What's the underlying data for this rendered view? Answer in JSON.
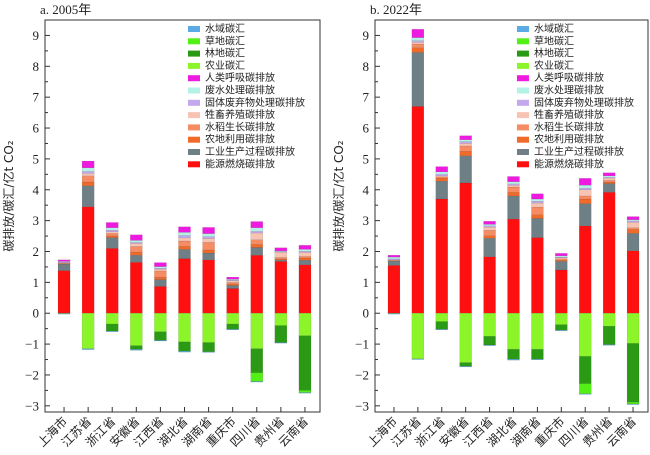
{
  "chart_data": [
    {
      "type": "bar",
      "stacked": true,
      "title": "a. 2005年",
      "xlabel": "",
      "ylabel": "碳排放/碳汇/亿t CO₂",
      "ylim": [
        -3.2,
        9.5
      ],
      "yticks": [
        -3,
        -2,
        -1,
        0,
        1,
        2,
        3,
        4,
        5,
        6,
        7,
        8,
        9
      ],
      "legend_position": "top-right",
      "categories": [
        "上海市",
        "江苏省",
        "浙江省",
        "安徽省",
        "江西省",
        "湖北省",
        "湖南省",
        "重庆市",
        "四川省",
        "贵州省",
        "云南省"
      ],
      "series": [
        {
          "name": "能源燃烧碳排放",
          "color": "#ff1010",
          "values": [
            1.38,
            3.45,
            2.1,
            1.65,
            0.87,
            1.77,
            1.73,
            0.8,
            1.88,
            1.68,
            1.57
          ]
        },
        {
          "name": "工业生产过程碳排放",
          "color": "#6e7f86",
          "values": [
            0.22,
            0.68,
            0.35,
            0.23,
            0.22,
            0.3,
            0.22,
            0.1,
            0.25,
            0.05,
            0.15
          ]
        },
        {
          "name": "农地利用碳排放",
          "color": "#f06a2a",
          "values": [
            0.01,
            0.12,
            0.06,
            0.1,
            0.08,
            0.1,
            0.1,
            0.05,
            0.1,
            0.03,
            0.07
          ]
        },
        {
          "name": "水稻生长碳排放",
          "color": "#f58c64",
          "values": [
            0.01,
            0.2,
            0.08,
            0.18,
            0.2,
            0.17,
            0.25,
            0.05,
            0.15,
            0.05,
            0.05
          ]
        },
        {
          "name": "牲畜养殖碳排放",
          "color": "#f7c4b4",
          "values": [
            0.02,
            0.08,
            0.05,
            0.1,
            0.06,
            0.1,
            0.12,
            0.05,
            0.22,
            0.17,
            0.13
          ]
        },
        {
          "name": "固体废弃物处理碳排放",
          "color": "#c4a8ee",
          "values": [
            0.02,
            0.06,
            0.05,
            0.03,
            0.03,
            0.08,
            0.06,
            0.02,
            0.05,
            0.02,
            0.04
          ]
        },
        {
          "name": "废水处理碳排放",
          "color": "#b4f2e6",
          "values": [
            0.02,
            0.12,
            0.08,
            0.07,
            0.05,
            0.1,
            0.1,
            0.03,
            0.12,
            0.02,
            0.06
          ]
        },
        {
          "name": "人类呼吸碳排放",
          "color": "#ee1ae0",
          "values": [
            0.05,
            0.22,
            0.17,
            0.18,
            0.13,
            0.18,
            0.2,
            0.07,
            0.2,
            0.1,
            0.13
          ]
        },
        {
          "name": "农业碳汇",
          "color": "#8cf52a",
          "values": [
            -0.01,
            -1.15,
            -0.35,
            -1.05,
            -0.6,
            -0.93,
            -0.95,
            -0.35,
            -1.15,
            -0.4,
            -0.73
          ]
        },
        {
          "name": "林地碳汇",
          "color": "#2a9a14",
          "values": [
            0,
            0,
            -0.23,
            -0.12,
            -0.28,
            -0.3,
            -0.3,
            -0.17,
            -0.78,
            -0.55,
            -1.77
          ]
        },
        {
          "name": "草地碳汇",
          "color": "#52f014",
          "values": [
            0,
            0,
            0,
            0,
            0,
            0,
            0,
            0,
            -0.28,
            0,
            -0.07
          ]
        },
        {
          "name": "水域碳汇",
          "color": "#5aaae6",
          "values": [
            -0.01,
            -0.03,
            -0.01,
            -0.03,
            -0.01,
            -0.03,
            -0.01,
            -0.01,
            -0.01,
            -0.01,
            -0.02
          ]
        }
      ]
    },
    {
      "type": "bar",
      "stacked": true,
      "title": "b. 2022年",
      "xlabel": "",
      "ylabel": "碳排放/碳汇/亿t CO₂",
      "ylim": [
        -3.2,
        9.5
      ],
      "yticks": [
        -3,
        -2,
        -1,
        0,
        1,
        2,
        3,
        4,
        5,
        6,
        7,
        8,
        9
      ],
      "legend_position": "top-right",
      "categories": [
        "上海市",
        "江苏省",
        "浙江省",
        "安徽省",
        "江西省",
        "湖北省",
        "湖南省",
        "重庆市",
        "四川省",
        "贵州省",
        "云南省"
      ],
      "series": [
        {
          "name": "能源燃烧碳排放",
          "color": "#ff1010",
          "values": [
            1.55,
            6.7,
            3.7,
            4.22,
            1.83,
            3.05,
            2.45,
            1.4,
            2.83,
            3.92,
            2.02
          ]
        },
        {
          "name": "工业生产过程碳排放",
          "color": "#6e7f86",
          "values": [
            0.15,
            1.75,
            0.58,
            0.88,
            0.6,
            0.75,
            0.62,
            0.28,
            0.72,
            0.28,
            0.57
          ]
        },
        {
          "name": "农地利用碳排放",
          "color": "#f06a2a",
          "values": [
            0.01,
            0.15,
            0.1,
            0.15,
            0.08,
            0.12,
            0.12,
            0.04,
            0.15,
            0.05,
            0.13
          ]
        },
        {
          "name": "水稻生长碳排放",
          "color": "#f58c64",
          "values": [
            0.01,
            0.12,
            0.04,
            0.17,
            0.18,
            0.17,
            0.25,
            0.04,
            0.1,
            0.05,
            0.05
          ]
        },
        {
          "name": "牲畜养殖碳排放",
          "color": "#f7c4b4",
          "values": [
            0.01,
            0.06,
            0.03,
            0.08,
            0.1,
            0.06,
            0.13,
            0.04,
            0.2,
            0.08,
            0.18
          ]
        },
        {
          "name": "固体废弃物处理碳排放",
          "color": "#c4a8ee",
          "values": [
            0.03,
            0.05,
            0.05,
            0.06,
            0.04,
            0.04,
            0.06,
            0.02,
            0.05,
            0.02,
            0.04
          ]
        },
        {
          "name": "废水处理碳排放",
          "color": "#b4f2e6",
          "values": [
            0.06,
            0.1,
            0.08,
            0.06,
            0.05,
            0.07,
            0.07,
            0.04,
            0.1,
            0.05,
            0.04
          ]
        },
        {
          "name": "人类呼吸碳排放",
          "color": "#ee1ae0",
          "values": [
            0.06,
            0.27,
            0.17,
            0.13,
            0.1,
            0.17,
            0.17,
            0.08,
            0.22,
            0.1,
            0.1
          ]
        },
        {
          "name": "农业碳汇",
          "color": "#8cf52a",
          "values": [
            -0.01,
            -1.48,
            -0.27,
            -1.6,
            -0.75,
            -1.17,
            -1.17,
            -0.37,
            -1.4,
            -0.42,
            -0.98
          ]
        },
        {
          "name": "林地碳汇",
          "color": "#2a9a14",
          "values": [
            0,
            0,
            -0.25,
            -0.12,
            -0.28,
            -0.32,
            -0.32,
            -0.18,
            -0.88,
            -0.6,
            -1.9
          ]
        },
        {
          "name": "草地碳汇",
          "color": "#52f014",
          "values": [
            0,
            0,
            0,
            0,
            0,
            0,
            0,
            0,
            -0.33,
            0,
            -0.06
          ]
        },
        {
          "name": "水域碳汇",
          "color": "#5aaae6",
          "values": [
            -0.01,
            -0.02,
            -0.01,
            -0.01,
            -0.01,
            -0.03,
            -0.01,
            -0.01,
            -0.01,
            -0.01,
            -0.01
          ]
        }
      ]
    }
  ],
  "legend_order": [
    "水域碳汇",
    "草地碳汇",
    "林地碳汇",
    "农业碳汇",
    "人类呼吸碳排放",
    "废水处理碳排放",
    "固体废弃物处理碳排放",
    "牲畜养殖碳排放",
    "水稻生长碳排放",
    "农地利用碳排放",
    "工业生产过程碳排放",
    "能源燃烧碳排放"
  ]
}
